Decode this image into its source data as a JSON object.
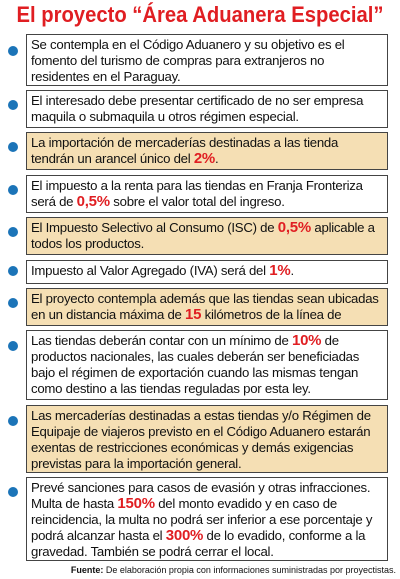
{
  "title": "El proyecto “Área Aduanera Especial”",
  "items": [
    {
      "parts": [
        "Se contempla en el Código Aduanero y su objetivo es el fomento del turismo de compras  para extranjeros no residentes  en el Paraguay."
      ]
    },
    {
      "parts": [
        "El interesado debe presentar certificado de no ser empresa maquila o submaquila u otros régimen especial."
      ]
    },
    {
      "parts": [
        "La importación de mercaderías destinadas a las tienda tendrán un arancel único del ",
        "2%",
        "."
      ]
    },
    {
      "parts": [
        "El impuesto a la renta para las tiendas en Franja Fronteriza será de ",
        "0,5%",
        " sobre el valor total del ingreso."
      ]
    },
    {
      "parts": [
        "El Impuesto Selectivo al Consumo (ISC) de ",
        "0,5%",
        " aplicable a todos los productos."
      ]
    },
    {
      "parts": [
        "Impuesto al Valor Agregado (IVA) será del ",
        "1%",
        "."
      ]
    },
    {
      "parts": [
        "El proyecto contempla además que las tiendas sean ubicadas en un distancia máxima de ",
        "15",
        " kilómetros de la línea de frontera."
      ]
    },
    {
      "parts": [
        "Las tiendas deberán contar con un mínimo de ",
        "10%",
        " de productos nacionales, las cuales deberán ser beneficiadas bajo el régimen de exportación cuando  las mismas tengan como destino a las tiendas reguladas por esta ley."
      ]
    },
    {
      "parts": [
        "Las mercaderías destinadas a estas tiendas y/o Régimen de Equipaje de viajeros previsto en el Código Aduanero estarán exentas de restricciones económicas y demás exigencias previstas para la importación general."
      ]
    },
    {
      "parts": [
        "Prevé sanciones para casos de evasión y otras infracciones. Multa de hasta ",
        "150%",
        " del monto evadido y en caso de reincidencia, la multa no podrá ser inferior a ese porcentaje y podrá alcanzar hasta el ",
        "300%",
        " de lo evadido, conforme a la gravedad. También se podrá cerrar el local."
      ]
    }
  ],
  "source": {
    "label": "Fuente:",
    "text": " De elaboración propia con informaciones suministradas por proyectistas."
  },
  "colors": {
    "title": "#e01e22",
    "highlight": "#e01e22",
    "bullet": "#1b74b8",
    "box_alt": "#f5dfb4"
  }
}
